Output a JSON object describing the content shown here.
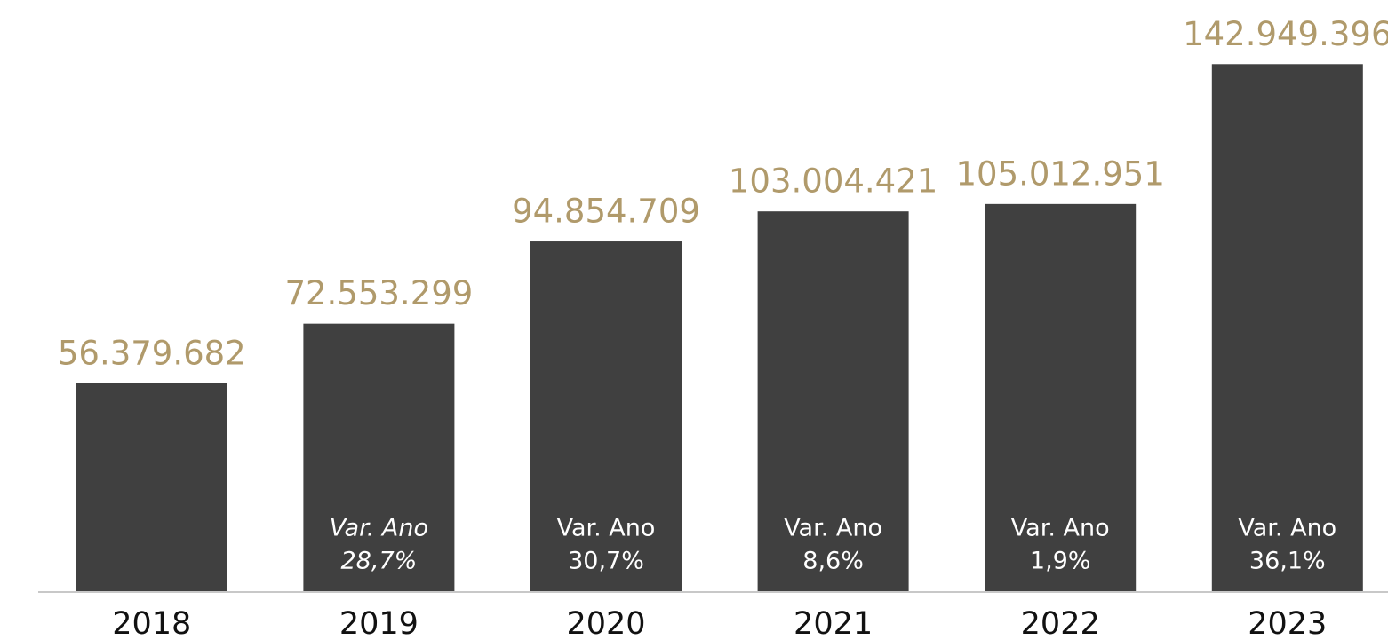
{
  "chart_data": {
    "type": "bar",
    "categories": [
      "2018",
      "2019",
      "2020",
      "2021",
      "2022",
      "2023"
    ],
    "values": [
      56379682,
      72553299,
      94854709,
      103004421,
      105012951,
      142949396
    ],
    "value_labels": [
      "56.379.682",
      "72.553.299",
      "94.854.709",
      "103.004.421",
      "105.012.951",
      "142.949.396"
    ],
    "annotations": [
      null,
      {
        "title": "Var. Ano",
        "text": "28,7%",
        "italic": true
      },
      {
        "title": "Var. Ano",
        "text": "30,7%"
      },
      {
        "title": "Var. Ano",
        "text": "8,6%"
      },
      {
        "title": "Var. Ano",
        "text": "1,9%"
      },
      {
        "title": "Var. Ano",
        "text": "36,1%"
      }
    ],
    "color": "#404040",
    "label_color": "#b09a6b",
    "ylim": [
      0,
      150000000
    ]
  }
}
